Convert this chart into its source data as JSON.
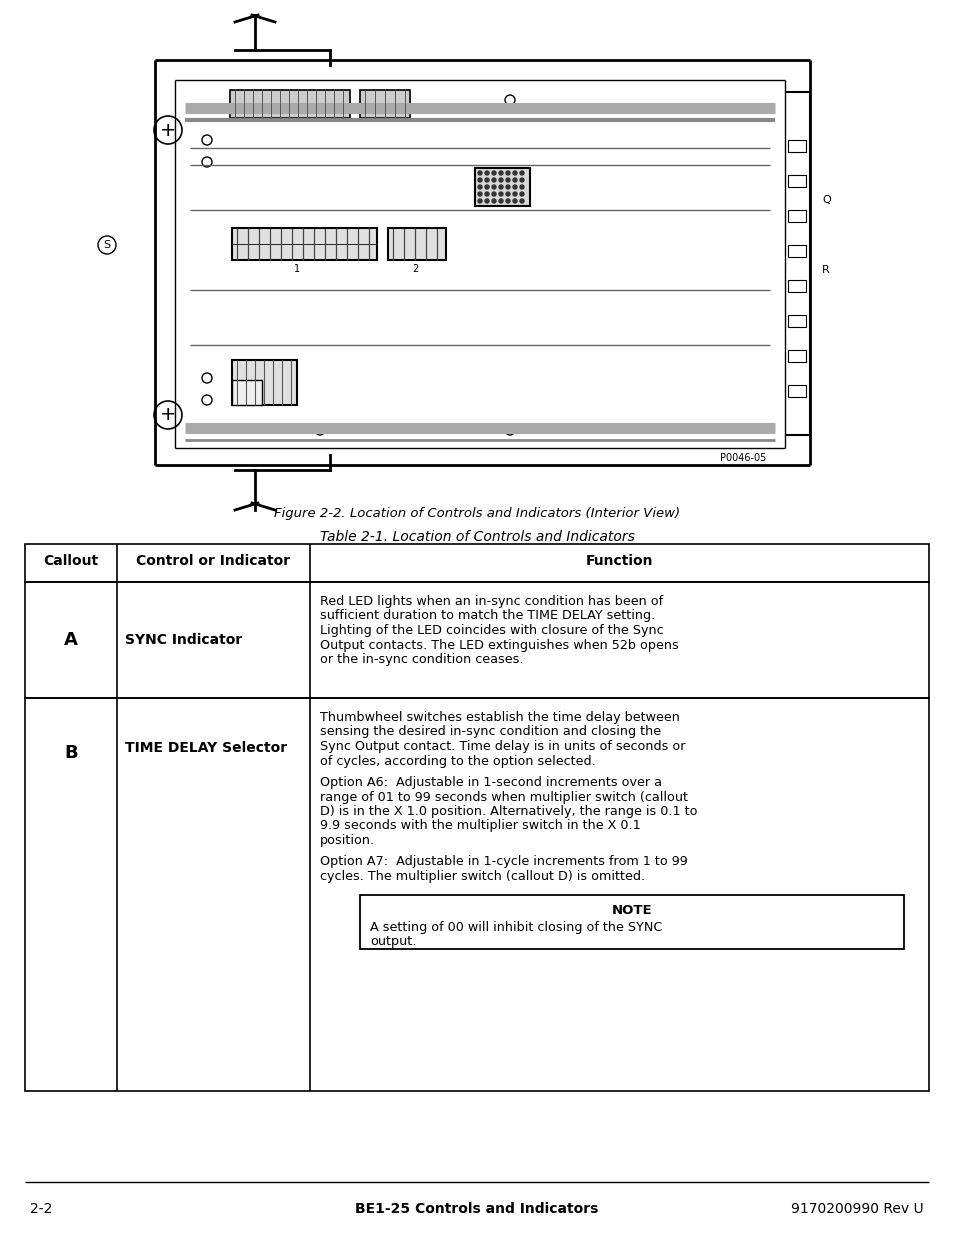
{
  "fig_caption": "Figure 2-2. Location of Controls and Indicators (Interior View)",
  "table_title": "Table 2-1. Location of Controls and Indicators",
  "col_headers": [
    "Callout",
    "Control or Indicator",
    "Function"
  ],
  "row_A": {
    "callout": "A",
    "indicator": "SYNC Indicator",
    "lines": [
      "Red LED lights when an in-sync condition has been of",
      "sufficient duration to match the TIME DELAY setting.",
      "Lighting of the LED coincides with closure of the Sync",
      "Output contacts. The LED extinguishes when 52b opens",
      "or the in-sync condition ceases."
    ]
  },
  "row_B": {
    "callout": "B",
    "indicator": "TIME DELAY Selector",
    "para1": [
      "Thumbwheel switches establish the time delay between",
      "sensing the desired in-sync condition and closing the",
      "Sync Output contact. Time delay is in units of seconds or",
      "of cycles, according to the option selected."
    ],
    "para2": [
      "Option A6:  Adjustable in 1-second increments over a",
      "range of 01 to 99 seconds when multiplier switch (callout",
      "D) is in the X 1.0 position. Alternatively, the range is 0.1 to",
      "9.9 seconds with the multiplier switch in the X 0.1",
      "position."
    ],
    "para3": [
      "Option A7:  Adjustable in 1-cycle increments from 1 to 99",
      "cycles. The multiplier switch (callout D) is omitted."
    ],
    "note_title": "NOTE",
    "note_lines": [
      "A setting of 00 will inhibit closing of the SYNC",
      "output."
    ]
  },
  "footer_left": "2-2",
  "footer_center": "BE1-25 Controls and Indicators",
  "footer_right": "9170200990 Rev U",
  "bg_color": "#ffffff",
  "text_color": "#000000"
}
